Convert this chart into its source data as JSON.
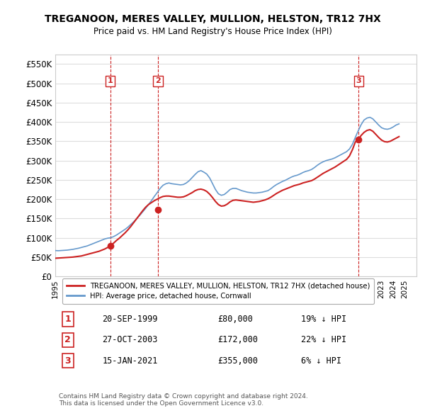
{
  "title": "TREGANOON, MERES VALLEY, MULLION, HELSTON, TR12 7HX",
  "subtitle": "Price paid vs. HM Land Registry's House Price Index (HPI)",
  "xlim": [
    1995.0,
    2026.0
  ],
  "ylim": [
    0,
    575000
  ],
  "yticks": [
    0,
    50000,
    100000,
    150000,
    200000,
    250000,
    300000,
    350000,
    400000,
    450000,
    500000,
    550000
  ],
  "ytick_labels": [
    "£0",
    "£50K",
    "£100K",
    "£150K",
    "£200K",
    "£250K",
    "£300K",
    "£350K",
    "£400K",
    "£450K",
    "£500K",
    "£550K"
  ],
  "xticks": [
    1995,
    1996,
    1997,
    1998,
    1999,
    2000,
    2001,
    2002,
    2003,
    2004,
    2005,
    2006,
    2007,
    2008,
    2009,
    2010,
    2011,
    2012,
    2013,
    2014,
    2015,
    2016,
    2017,
    2018,
    2019,
    2020,
    2021,
    2022,
    2023,
    2024,
    2025
  ],
  "sale_dates": [
    1999.72,
    2003.82,
    2021.04
  ],
  "sale_prices": [
    80000,
    172000,
    355000
  ],
  "sale_labels": [
    "1",
    "2",
    "3"
  ],
  "hpi_color": "#6699cc",
  "price_color": "#cc2222",
  "vline_color": "#cc2222",
  "background_color": "#ffffff",
  "grid_color": "#dddddd",
  "legend_entries": [
    "TREGANOON, MERES VALLEY, MULLION, HELSTON, TR12 7HX (detached house)",
    "HPI: Average price, detached house, Cornwall"
  ],
  "table_data": [
    [
      "1",
      "20-SEP-1999",
      "£80,000",
      "19% ↓ HPI"
    ],
    [
      "2",
      "27-OCT-2003",
      "£172,000",
      "22% ↓ HPI"
    ],
    [
      "3",
      "15-JAN-2021",
      "£355,000",
      "6% ↓ HPI"
    ]
  ],
  "footer": "Contains HM Land Registry data © Crown copyright and database right 2024.\nThis data is licensed under the Open Government Licence v3.0.",
  "hpi_x": [
    1995.0,
    1995.25,
    1995.5,
    1995.75,
    1996.0,
    1996.25,
    1996.5,
    1996.75,
    1997.0,
    1997.25,
    1997.5,
    1997.75,
    1998.0,
    1998.25,
    1998.5,
    1998.75,
    1999.0,
    1999.25,
    1999.5,
    1999.75,
    2000.0,
    2000.25,
    2000.5,
    2000.75,
    2001.0,
    2001.25,
    2001.5,
    2001.75,
    2002.0,
    2002.25,
    2002.5,
    2002.75,
    2003.0,
    2003.25,
    2003.5,
    2003.75,
    2004.0,
    2004.25,
    2004.5,
    2004.75,
    2005.0,
    2005.25,
    2005.5,
    2005.75,
    2006.0,
    2006.25,
    2006.5,
    2006.75,
    2007.0,
    2007.25,
    2007.5,
    2007.75,
    2008.0,
    2008.25,
    2008.5,
    2008.75,
    2009.0,
    2009.25,
    2009.5,
    2009.75,
    2010.0,
    2010.25,
    2010.5,
    2010.75,
    2011.0,
    2011.25,
    2011.5,
    2011.75,
    2012.0,
    2012.25,
    2012.5,
    2012.75,
    2013.0,
    2013.25,
    2013.5,
    2013.75,
    2014.0,
    2014.25,
    2014.5,
    2014.75,
    2015.0,
    2015.25,
    2015.5,
    2015.75,
    2016.0,
    2016.25,
    2016.5,
    2016.75,
    2017.0,
    2017.25,
    2017.5,
    2017.75,
    2018.0,
    2018.25,
    2018.5,
    2018.75,
    2019.0,
    2019.25,
    2019.5,
    2019.75,
    2020.0,
    2020.25,
    2020.5,
    2020.75,
    2021.0,
    2021.25,
    2021.5,
    2021.75,
    2022.0,
    2022.25,
    2022.5,
    2022.75,
    2023.0,
    2023.25,
    2023.5,
    2023.75,
    2024.0,
    2024.25,
    2024.5
  ],
  "hpi_y": [
    67000,
    66500,
    67000,
    67500,
    68000,
    69000,
    70000,
    71500,
    73000,
    75000,
    77000,
    79000,
    82000,
    85000,
    88000,
    91000,
    94000,
    97000,
    99000,
    100000,
    103000,
    107000,
    112000,
    117000,
    122000,
    128000,
    135000,
    142000,
    150000,
    158000,
    167000,
    176000,
    186000,
    196000,
    207000,
    217000,
    228000,
    236000,
    240000,
    242000,
    240000,
    239000,
    238000,
    237000,
    238000,
    242000,
    248000,
    256000,
    264000,
    271000,
    274000,
    270000,
    265000,
    255000,
    240000,
    225000,
    214000,
    210000,
    212000,
    218000,
    225000,
    228000,
    228000,
    225000,
    222000,
    220000,
    218000,
    217000,
    216000,
    216000,
    217000,
    218000,
    220000,
    222000,
    227000,
    233000,
    238000,
    242000,
    246000,
    249000,
    253000,
    257000,
    260000,
    262000,
    265000,
    269000,
    272000,
    274000,
    277000,
    282000,
    288000,
    293000,
    297000,
    300000,
    302000,
    304000,
    307000,
    311000,
    315000,
    319000,
    323000,
    330000,
    342000,
    360000,
    377000,
    393000,
    405000,
    410000,
    412000,
    408000,
    400000,
    392000,
    385000,
    382000,
    381000,
    383000,
    387000,
    392000,
    395000
  ],
  "price_x": [
    1995.0,
    1995.25,
    1995.5,
    1995.75,
    1996.0,
    1996.25,
    1996.5,
    1996.75,
    1997.0,
    1997.25,
    1997.5,
    1997.75,
    1998.0,
    1998.25,
    1998.5,
    1998.75,
    1999.0,
    1999.25,
    1999.5,
    1999.75,
    2000.0,
    2000.25,
    2000.5,
    2000.75,
    2001.0,
    2001.25,
    2001.5,
    2001.75,
    2002.0,
    2002.25,
    2002.5,
    2002.75,
    2003.0,
    2003.25,
    2003.5,
    2003.75,
    2004.0,
    2004.25,
    2004.5,
    2004.75,
    2005.0,
    2005.25,
    2005.5,
    2005.75,
    2006.0,
    2006.25,
    2006.5,
    2006.75,
    2007.0,
    2007.25,
    2007.5,
    2007.75,
    2008.0,
    2008.25,
    2008.5,
    2008.75,
    2009.0,
    2009.25,
    2009.5,
    2009.75,
    2010.0,
    2010.25,
    2010.5,
    2010.75,
    2011.0,
    2011.25,
    2011.5,
    2011.75,
    2012.0,
    2012.25,
    2012.5,
    2012.75,
    2013.0,
    2013.25,
    2013.5,
    2013.75,
    2014.0,
    2014.25,
    2014.5,
    2014.75,
    2015.0,
    2015.25,
    2015.5,
    2015.75,
    2016.0,
    2016.25,
    2016.5,
    2016.75,
    2017.0,
    2017.25,
    2017.5,
    2017.75,
    2018.0,
    2018.25,
    2018.5,
    2018.75,
    2019.0,
    2019.25,
    2019.5,
    2019.75,
    2020.0,
    2020.25,
    2020.5,
    2020.75,
    2021.0,
    2021.25,
    2021.5,
    2021.75,
    2022.0,
    2022.25,
    2022.5,
    2022.75,
    2023.0,
    2023.25,
    2023.5,
    2023.75,
    2024.0,
    2024.25,
    2024.5
  ],
  "price_y": [
    47000,
    47500,
    48000,
    48500,
    49000,
    49500,
    50000,
    51000,
    52000,
    53000,
    55000,
    57000,
    59000,
    61000,
    63000,
    65000,
    68000,
    71000,
    75000,
    80000,
    86000,
    93000,
    99000,
    106000,
    113000,
    121000,
    130000,
    140000,
    150000,
    160000,
    170000,
    179000,
    186000,
    191000,
    196000,
    200000,
    204000,
    207000,
    208000,
    208000,
    207000,
    206000,
    205000,
    205000,
    206000,
    209000,
    213000,
    217000,
    222000,
    225000,
    226000,
    224000,
    220000,
    213000,
    204000,
    194000,
    186000,
    182000,
    183000,
    187000,
    193000,
    197000,
    198000,
    197000,
    196000,
    195000,
    194000,
    193000,
    192000,
    193000,
    194000,
    196000,
    198000,
    201000,
    205000,
    210000,
    215000,
    219000,
    223000,
    226000,
    229000,
    232000,
    235000,
    237000,
    239000,
    242000,
    244000,
    246000,
    248000,
    252000,
    257000,
    262000,
    267000,
    271000,
    275000,
    279000,
    283000,
    288000,
    293000,
    298000,
    303000,
    312000,
    328000,
    348000,
    355000,
    365000,
    373000,
    378000,
    380000,
    376000,
    368000,
    360000,
    353000,
    349000,
    348000,
    350000,
    354000,
    358000,
    362000
  ]
}
